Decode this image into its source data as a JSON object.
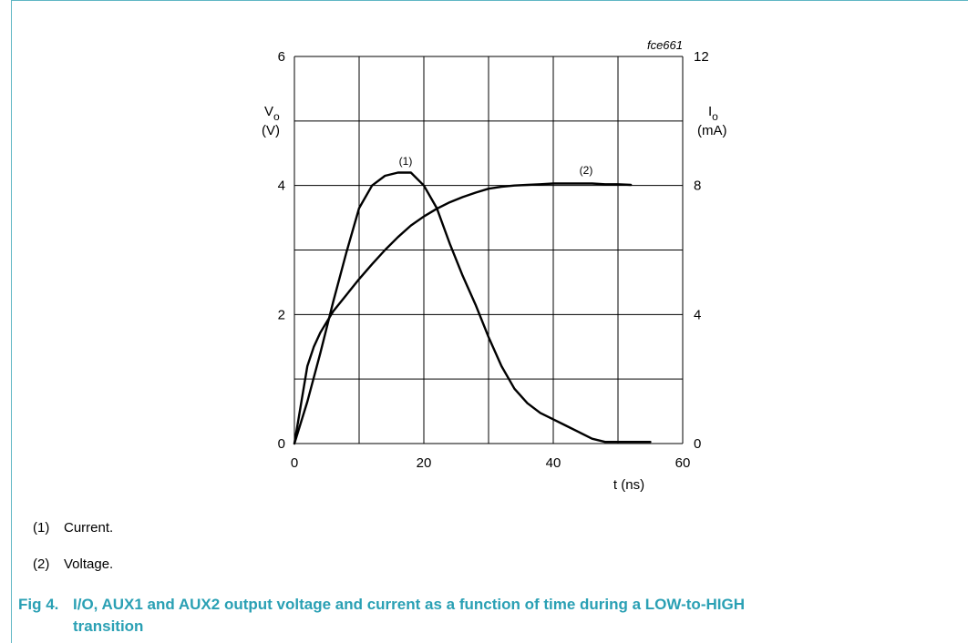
{
  "chart_data": {
    "type": "line",
    "id_label": "fce661",
    "xlabel": "t (ns)",
    "ylabel_left": {
      "symbol": "V",
      "sub": "o",
      "unit": "(V)"
    },
    "ylabel_right": {
      "symbol": "I",
      "sub": "o",
      "unit": "(mA)"
    },
    "xlim": [
      0,
      60
    ],
    "ylim_left": [
      0,
      6
    ],
    "ylim_right": [
      0,
      12
    ],
    "x_ticks": [
      "0",
      "20",
      "40",
      "60"
    ],
    "y_left_ticks": [
      "0",
      "2",
      "4",
      "6"
    ],
    "y_right_ticks": [
      "0",
      "4",
      "8",
      "12"
    ],
    "grid": true,
    "series": [
      {
        "name": "(1)",
        "axis": "right",
        "x": [
          0,
          2,
          4,
          6,
          8,
          10,
          12,
          14,
          16,
          18,
          20,
          22,
          24,
          26,
          28,
          30,
          32,
          34,
          36,
          38,
          40,
          42,
          44,
          46,
          48,
          50,
          52,
          55
        ],
        "y": [
          0,
          1.3,
          2.8,
          4.4,
          5.9,
          7.3,
          8.0,
          8.3,
          8.4,
          8.4,
          8.0,
          7.3,
          6.2,
          5.2,
          4.3,
          3.3,
          2.4,
          1.7,
          1.25,
          0.95,
          0.75,
          0.55,
          0.35,
          0.15,
          0.05,
          0.05,
          0.05,
          0.05
        ]
      },
      {
        "name": "(2)",
        "axis": "left",
        "x": [
          0,
          1,
          2,
          3,
          4,
          6,
          8,
          10,
          12,
          14,
          16,
          18,
          20,
          22,
          24,
          26,
          28,
          30,
          32,
          34,
          36,
          38,
          40,
          42,
          44,
          46,
          48,
          50,
          52
        ],
        "y": [
          0,
          0.6,
          1.2,
          1.5,
          1.72,
          2.05,
          2.3,
          2.55,
          2.78,
          3.0,
          3.2,
          3.38,
          3.52,
          3.64,
          3.74,
          3.82,
          3.89,
          3.95,
          3.98,
          4.0,
          4.01,
          4.02,
          4.03,
          4.03,
          4.03,
          4.03,
          4.02,
          4.02,
          4.01
        ]
      }
    ]
  },
  "legend": [
    {
      "key": "(1)",
      "text": "Current."
    },
    {
      "key": "(2)",
      "text": "Voltage."
    }
  ],
  "caption": {
    "fig": "Fig 4.",
    "text": "I/O, AUX1 and AUX2 output voltage and current as a function of time during a LOW-to-HIGH transition"
  },
  "colors": {
    "frame": "#5fb6c4",
    "caption": "#2aa0b4",
    "line": "#000000",
    "grid": "#000000"
  }
}
